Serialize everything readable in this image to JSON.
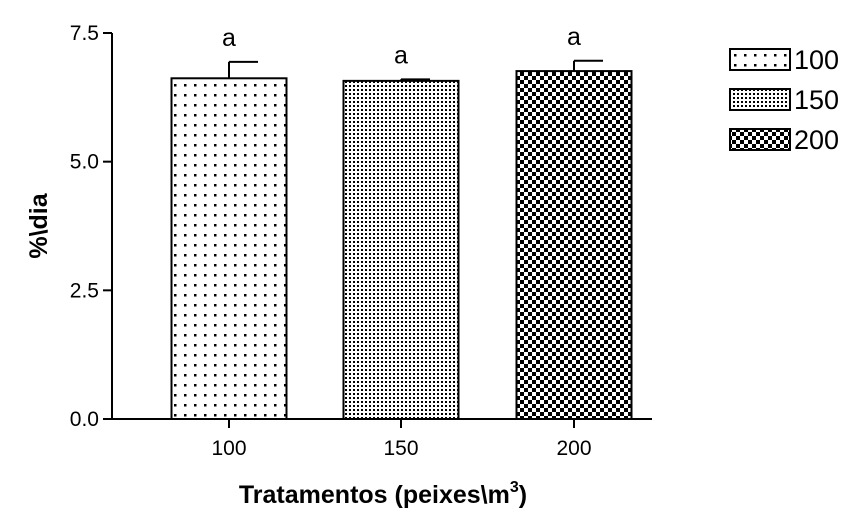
{
  "chart_data": {
    "type": "bar",
    "xlabel": "Tratamentos (peixes\\m",
    "xlabel_sup": "3",
    "xlabel_close": ")",
    "ylabel": "%\\dia",
    "ylim": [
      0,
      7.5
    ],
    "yticks": [
      "0.0",
      "2.5",
      "5.0",
      "7.5"
    ],
    "ytick_values": [
      0,
      2.5,
      5.0,
      7.5
    ],
    "categories": [
      "100",
      "150",
      "200"
    ],
    "values": [
      6.62,
      6.57,
      6.76
    ],
    "errors": [
      0.32,
      0.03,
      0.2
    ],
    "significance": [
      "a",
      "a",
      "a"
    ],
    "patterns": [
      "sparse-dots",
      "dense-dots",
      "checker"
    ],
    "legend": {
      "position": "right",
      "entries": [
        "100",
        "150",
        "200"
      ]
    }
  }
}
